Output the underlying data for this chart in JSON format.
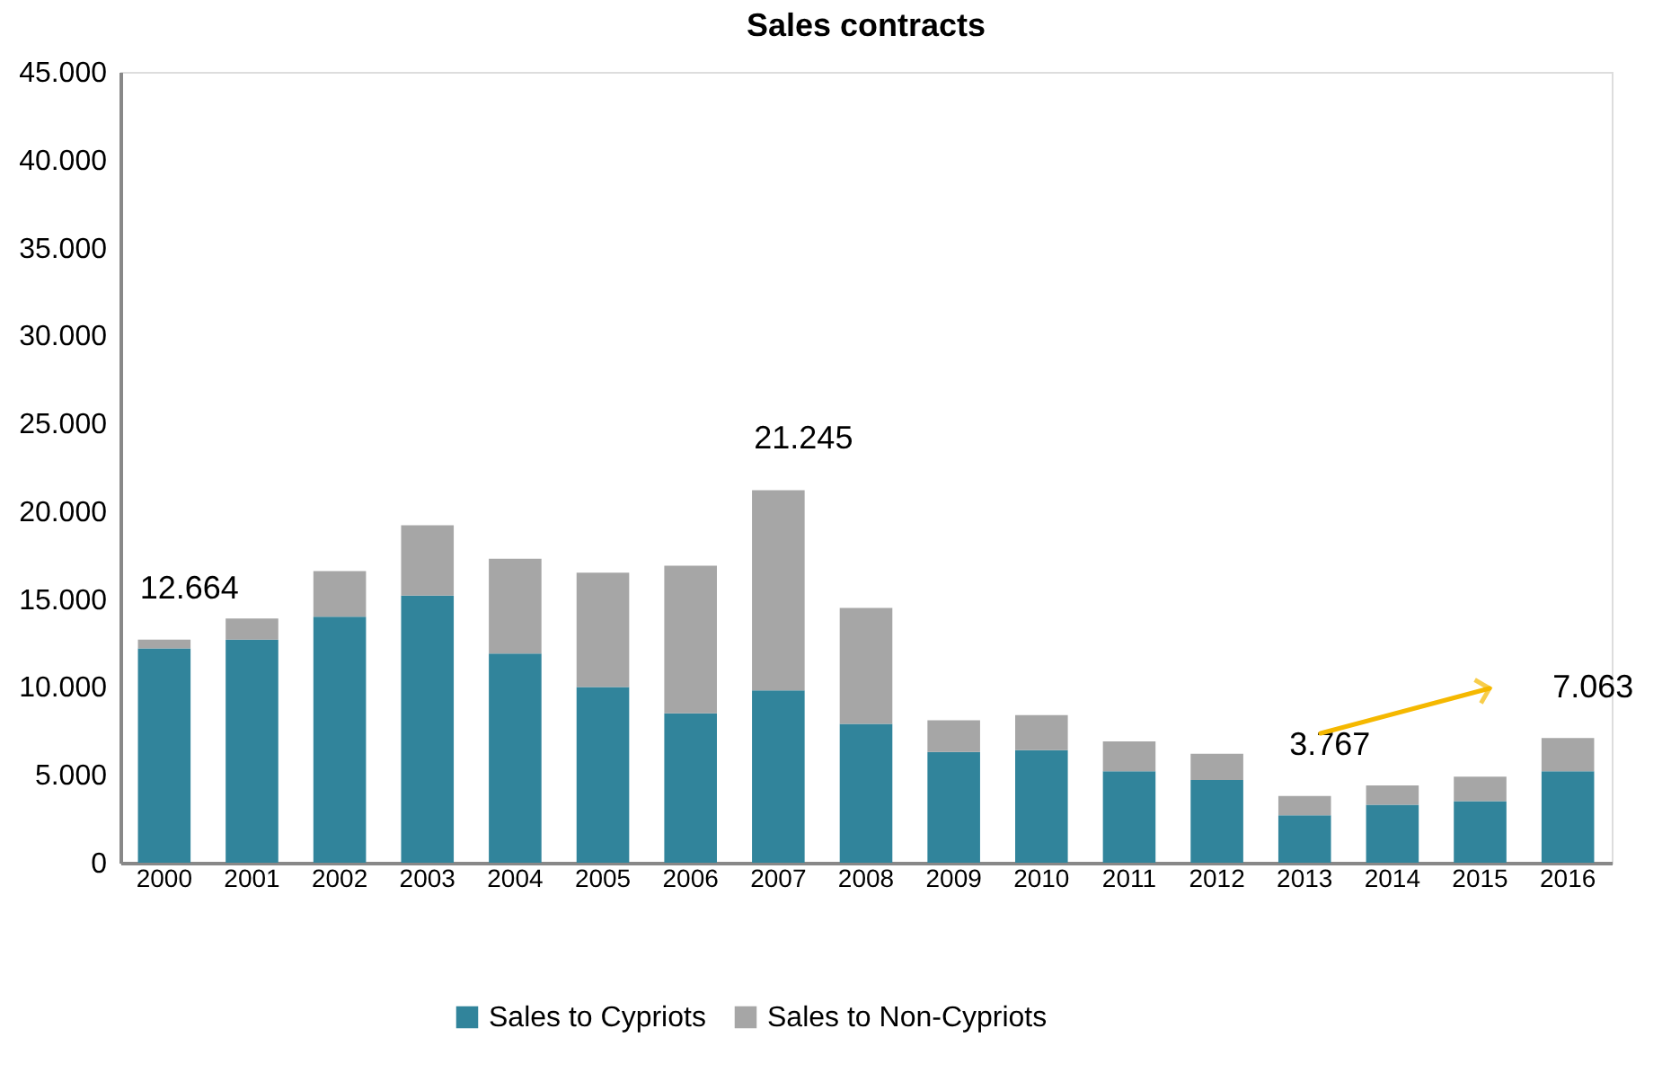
{
  "chart_data": {
    "type": "bar",
    "title": "Sales contracts",
    "stacked": true,
    "categories": [
      "2000",
      "2001",
      "2002",
      "2003",
      "2004",
      "2005",
      "2006",
      "2007",
      "2008",
      "2009",
      "2010",
      "2011",
      "2012",
      "2013",
      "2014",
      "2015",
      "2016"
    ],
    "series": [
      {
        "name": "Sales to Cypriots",
        "color": "#31849b",
        "values": [
          12200,
          12700,
          14000,
          15200,
          11900,
          10000,
          8500,
          9800,
          7900,
          6300,
          6400,
          5200,
          4700,
          2700,
          3300,
          3500,
          5200
        ]
      },
      {
        "name": "Sales to Non-Cypriots",
        "color": "#a6a6a6",
        "values": [
          500,
          1200,
          2600,
          4000,
          5400,
          6500,
          8400,
          11400,
          6600,
          1800,
          2000,
          1700,
          1500,
          1100,
          1100,
          1400,
          1900
        ]
      }
    ],
    "ylim": [
      0,
      45000
    ],
    "yticks": [
      0,
      {
        "value": 5000,
        "label": "5.000"
      },
      {
        "value": 10000,
        "label": "10.000"
      },
      {
        "value": 15000,
        "label": "15.000"
      },
      {
        "value": 20000,
        "label": "20.000"
      },
      {
        "value": 25000,
        "label": "25.000"
      },
      {
        "value": 30000,
        "label": "30.000"
      },
      {
        "value": 35000,
        "label": "35.000"
      },
      {
        "value": 40000,
        "label": "40.000"
      },
      {
        "value": 45000,
        "label": "45.000"
      }
    ],
    "grid": false,
    "legend": "bottom",
    "annotations": [
      {
        "text": "12.664",
        "x": "2000",
        "y": 12664
      },
      {
        "text": "21.245",
        "x": "2007",
        "y": 21245
      },
      {
        "text": "3.767",
        "x": "2013",
        "y": 3767
      },
      {
        "text": "7.063",
        "x": "2016",
        "y": 7063
      }
    ]
  }
}
